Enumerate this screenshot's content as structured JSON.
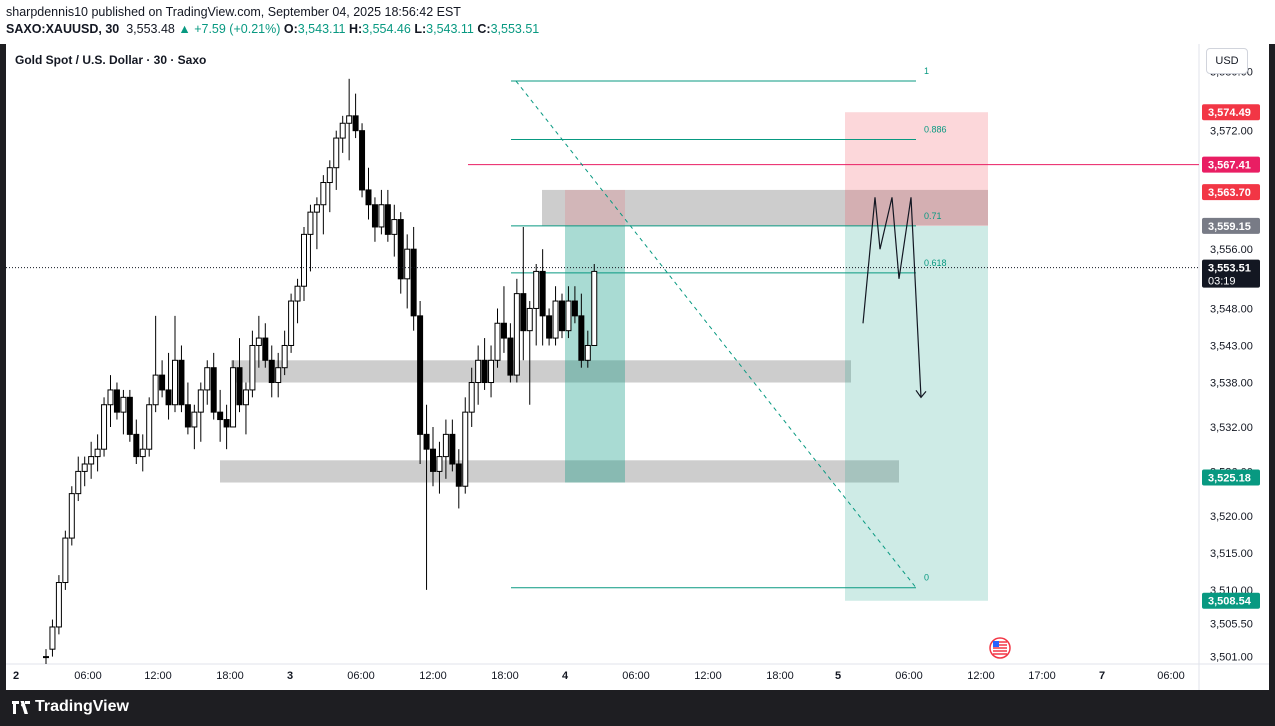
{
  "header": {
    "published_line": "sharpdennis10 published on TradingView.com, September 04, 2025 18:56:42 EST",
    "symbol": "SAXO:XAUUSD, 30",
    "last": "3,553.48",
    "change": "+7.59 (+0.21%)",
    "o_label": "O:",
    "o_value": "3,543.11",
    "h_label": "H:",
    "h_value": "3,554.46",
    "l_label": "L:",
    "l_value": "3,543.11",
    "c_label": "C:",
    "c_value": "3,553.51"
  },
  "legend_title": "Gold Spot / U.S. Dollar · 30 · Saxo",
  "currency_button": "USD",
  "footer": {
    "brand": "TradingView"
  },
  "colors": {
    "up": "#ffffff",
    "down": "#000000",
    "teal": "#089981",
    "red": "#f23645",
    "magenta": "#e91e63",
    "fib_line": "#089981",
    "zone": "#b2b2b2"
  },
  "chart_data": {
    "type": "candlestick",
    "symbol": "XAUUSD",
    "timeframe": "30",
    "ylim": [
      3500.0,
      3581.0
    ],
    "y_ticks": [
      3580.0,
      3572.0,
      3556.0,
      3548.0,
      3543.0,
      3538.0,
      3532.0,
      3526.0,
      3520.0,
      3515.0,
      3510.0,
      3505.5,
      3501.0
    ],
    "y_tick_labels": [
      "3,580.00",
      "3,572.00",
      "3,556.00",
      "3,548.00",
      "3,543.00",
      "3,538.00",
      "3,532.00",
      "3,526.00",
      "3,520.00",
      "3,515.00",
      "3,510.00",
      "3,505.50",
      "3,501.00"
    ],
    "x_ticks": [
      "2",
      "06:00",
      "12:00",
      "18:00",
      "3",
      "06:00",
      "12:00",
      "18:00",
      "4",
      "06:00",
      "12:00",
      "18:00",
      "5",
      "06:00",
      "12:00",
      "17:00",
      "7",
      "06:00"
    ],
    "x_tick_bold": [
      true,
      false,
      false,
      false,
      true,
      false,
      false,
      false,
      true,
      false,
      false,
      false,
      true,
      false,
      false,
      false,
      true,
      false
    ],
    "price_labels": [
      {
        "value": 3574.49,
        "text": "3,574.49",
        "color": "#f23645"
      },
      {
        "value": 3567.41,
        "text": "3,567.41",
        "color": "#e91e63"
      },
      {
        "value": 3563.7,
        "text": "3,563.70",
        "color": "#f23645"
      },
      {
        "value": 3559.15,
        "text": "3,559.15",
        "color": "#787b86"
      },
      {
        "value": 3553.51,
        "text": "3,553.51",
        "sub": "03:19",
        "color": "#131722"
      },
      {
        "value": 3525.18,
        "text": "3,525.18",
        "color": "#089981"
      },
      {
        "value": 3508.54,
        "text": "3,508.54",
        "color": "#089981"
      }
    ],
    "fib_levels": [
      {
        "label": "1",
        "price": 3578.7
      },
      {
        "label": "0.886",
        "price": 3570.8
      },
      {
        "label": "0.71",
        "price": 3559.15
      },
      {
        "label": "0.618",
        "price": 3552.8
      },
      {
        "label": "0",
        "price": 3510.3
      }
    ],
    "horizontal_line": {
      "price": 3567.41
    },
    "current_price": 3553.51,
    "candles": [
      [
        3501,
        3502,
        3500,
        3501
      ],
      [
        3502,
        3506,
        3501,
        3505
      ],
      [
        3505,
        3512,
        3504,
        3511
      ],
      [
        3511,
        3518,
        3510,
        3517
      ],
      [
        3517,
        3524,
        3516,
        3523
      ],
      [
        3523,
        3528,
        3522,
        3526
      ],
      [
        3526,
        3528,
        3524,
        3527
      ],
      [
        3527,
        3530,
        3525,
        3528
      ],
      [
        3528,
        3531,
        3526,
        3529
      ],
      [
        3529,
        3536,
        3528,
        3535
      ],
      [
        3535,
        3539,
        3532,
        3537
      ],
      [
        3537,
        3538,
        3533,
        3534
      ],
      [
        3534,
        3537,
        3531,
        3536
      ],
      [
        3536,
        3537,
        3530,
        3531
      ],
      [
        3531,
        3533,
        3527,
        3528
      ],
      [
        3528,
        3531,
        3526,
        3529
      ],
      [
        3529,
        3536,
        3528,
        3535
      ],
      [
        3535,
        3547,
        3534,
        3539
      ],
      [
        3539,
        3541,
        3536,
        3537
      ],
      [
        3537,
        3542,
        3533,
        3535
      ],
      [
        3535,
        3547,
        3534,
        3541
      ],
      [
        3541,
        3543,
        3534,
        3535
      ],
      [
        3535,
        3538,
        3531,
        3532
      ],
      [
        3532,
        3535,
        3529,
        3534
      ],
      [
        3534,
        3538,
        3530,
        3537
      ],
      [
        3537,
        3541,
        3535,
        3540
      ],
      [
        3540,
        3542,
        3533,
        3534
      ],
      [
        3534,
        3537,
        3530,
        3533
      ],
      [
        3533,
        3535,
        3529,
        3532
      ],
      [
        3532,
        3541,
        3532,
        3540
      ],
      [
        3540,
        3544,
        3534,
        3535
      ],
      [
        3535,
        3538,
        3531,
        3537
      ],
      [
        3537,
        3545,
        3536,
        3543
      ],
      [
        3543,
        3547,
        3540,
        3544
      ],
      [
        3544,
        3546,
        3540,
        3541
      ],
      [
        3541,
        3543,
        3536,
        3538
      ],
      [
        3538,
        3542,
        3536,
        3540
      ],
      [
        3540,
        3545,
        3539,
        3543
      ],
      [
        3543,
        3550,
        3542,
        3549
      ],
      [
        3549,
        3552,
        3546,
        3551
      ],
      [
        3551,
        3559,
        3549,
        3558
      ],
      [
        3558,
        3562,
        3553,
        3561
      ],
      [
        3561,
        3563,
        3556,
        3562
      ],
      [
        3562,
        3566,
        3558,
        3565
      ],
      [
        3565,
        3568,
        3561,
        3567
      ],
      [
        3567,
        3572,
        3564,
        3571
      ],
      [
        3571,
        3574,
        3569,
        3573
      ],
      [
        3573,
        3579,
        3568,
        3574
      ],
      [
        3574,
        3577,
        3571,
        3572
      ],
      [
        3572,
        3573,
        3563,
        3564
      ],
      [
        3564,
        3567,
        3560,
        3562
      ],
      [
        3562,
        3563,
        3557,
        3559
      ],
      [
        3559,
        3564,
        3558,
        3562
      ],
      [
        3562,
        3564,
        3557,
        3558
      ],
      [
        3558,
        3562,
        3555,
        3560
      ],
      [
        3560,
        3561,
        3550,
        3552
      ],
      [
        3552,
        3558,
        3548,
        3556
      ],
      [
        3556,
        3559,
        3545,
        3547
      ],
      [
        3547,
        3549,
        3527,
        3531
      ],
      [
        3531,
        3535,
        3510,
        3529
      ],
      [
        3529,
        3532,
        3524,
        3526
      ],
      [
        3526,
        3530,
        3523,
        3528
      ],
      [
        3528,
        3533,
        3525,
        3531
      ],
      [
        3531,
        3533,
        3526,
        3527
      ],
      [
        3527,
        3529,
        3521,
        3524
      ],
      [
        3524,
        3536,
        3523,
        3534
      ],
      [
        3534,
        3540,
        3532,
        3538
      ],
      [
        3538,
        3543,
        3535,
        3541
      ],
      [
        3541,
        3544,
        3537,
        3538
      ],
      [
        3538,
        3543,
        3536,
        3541
      ],
      [
        3541,
        3548,
        3540,
        3546
      ],
      [
        3546,
        3551,
        3542,
        3544
      ],
      [
        3544,
        3546,
        3538,
        3539
      ],
      [
        3539,
        3552,
        3538,
        3550
      ],
      [
        3550,
        3559,
        3541,
        3545
      ],
      [
        3545,
        3549,
        3535,
        3548
      ],
      [
        3548,
        3554,
        3543,
        3553
      ],
      [
        3553,
        3556,
        3543,
        3547
      ],
      [
        3547,
        3548,
        3543,
        3544
      ],
      [
        3544,
        3551,
        3543,
        3549
      ],
      [
        3549,
        3550,
        3544,
        3545
      ],
      [
        3545,
        3551,
        3544,
        3549
      ],
      [
        3549,
        3551,
        3546,
        3547
      ],
      [
        3547,
        3550,
        3540,
        3541
      ],
      [
        3541,
        3545,
        3540,
        3543
      ],
      [
        3543,
        3554,
        3543,
        3553
      ]
    ],
    "projection_path": [
      [
        3546,
        0
      ],
      [
        3563,
        12
      ],
      [
        3556,
        17
      ],
      [
        3563,
        29
      ],
      [
        3552,
        36
      ],
      [
        3563,
        48
      ],
      [
        3536,
        58
      ]
    ]
  }
}
